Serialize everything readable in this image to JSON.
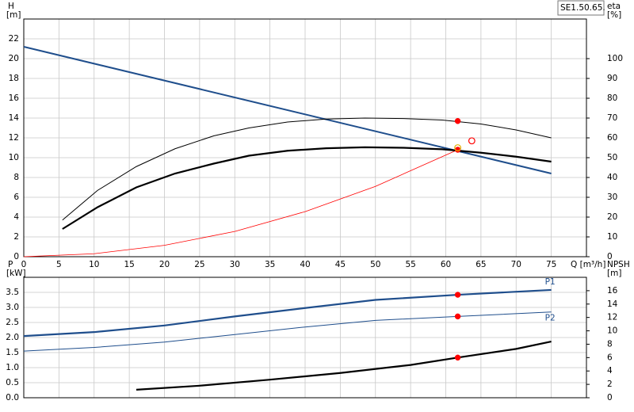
{
  "chart_data": [
    {
      "type": "line",
      "title": "SE1.50.65.",
      "xlabel": "Q [m³/h]",
      "ylabel": "H",
      "yunit": "[m]",
      "y2label": "eta",
      "y2unit": "[%]",
      "xlim": [
        0,
        80
      ],
      "xticks": [
        0,
        5,
        10,
        15,
        20,
        25,
        30,
        35,
        40,
        45,
        50,
        55,
        60,
        65,
        70,
        75
      ],
      "ylim": [
        0,
        24
      ],
      "yticks": [
        0,
        2,
        4,
        6,
        8,
        10,
        12,
        14,
        16,
        18,
        20,
        22
      ],
      "y2lim": [
        0,
        120
      ],
      "y2ticks": [
        0,
        10,
        20,
        30,
        40,
        50,
        60,
        70,
        80,
        90,
        100
      ],
      "grid": true,
      "series": [
        {
          "color": "#1f4e8c",
          "line_width": 2,
          "axis": "y",
          "x": [
            0,
            75
          ],
          "values": [
            21.2,
            8.4
          ]
        },
        {
          "color": "#ff0000",
          "line_width": 0.8,
          "axis": "y",
          "x": [
            0,
            10,
            20,
            30,
            40,
            50,
            61.7
          ],
          "values": [
            0,
            0.3,
            1.15,
            2.55,
            4.55,
            7.1,
            10.8
          ]
        },
        {
          "color": "#000000",
          "line_width": 1,
          "axis": "y2",
          "x": [
            5.5,
            10.5,
            16,
            21.5,
            27,
            32,
            37.5,
            43,
            48.5,
            54,
            59.5,
            65,
            70,
            75
          ],
          "values": [
            18.5,
            33.5,
            45.5,
            54.5,
            61,
            65,
            68,
            69.5,
            70,
            69.75,
            69,
            67,
            64,
            60
          ]
        },
        {
          "color": "#000000",
          "line_width": 2.2,
          "axis": "y",
          "x": [
            5.5,
            10.5,
            16,
            21.5,
            27,
            32,
            37.5,
            43,
            48.5,
            54,
            59.5,
            65,
            70,
            75
          ],
          "values": [
            2.8,
            5.0,
            7.0,
            8.4,
            9.4,
            10.2,
            10.7,
            10.95,
            11.05,
            11.0,
            10.85,
            10.5,
            10.1,
            9.6
          ]
        }
      ],
      "markers": [
        {
          "x": 61.7,
          "y": 10.8,
          "axis": "y",
          "color": "#ff0000",
          "style": "filled"
        },
        {
          "x": 61.7,
          "y": 11.0,
          "axis": "y",
          "color": "#e0b000",
          "style": "hollow"
        },
        {
          "x": 61.7,
          "y": 68.5,
          "axis": "y2",
          "color": "#ff0000",
          "style": "filled"
        },
        {
          "x": 63.7,
          "y": 11.7,
          "axis": "y",
          "color": "#ff0000",
          "style": "hollow"
        }
      ]
    },
    {
      "type": "line",
      "ylabel": "P",
      "yunit": "[kW]",
      "y2label": "NPSH",
      "y2unit": "[m]",
      "xlim": [
        0,
        80
      ],
      "ylim": [
        0,
        4
      ],
      "yticks": [
        {
          "value": 0,
          "label": "0.0"
        },
        0.5,
        {
          "value": 1,
          "label": "1.0"
        },
        1.5,
        {
          "value": 2,
          "label": "2.0"
        },
        2.5,
        {
          "value": 3,
          "label": "3.0"
        },
        3.5
      ],
      "y2lim": [
        0,
        18
      ],
      "y2ticks": [
        0,
        2,
        4,
        6,
        8,
        10,
        12,
        14,
        16
      ],
      "grid": true,
      "series": [
        {
          "name": "P1",
          "color": "#1f4e8c",
          "line_width": 2.2,
          "axis": "y",
          "x": [
            0,
            10,
            20,
            30,
            40,
            50,
            61.7,
            75
          ],
          "values": [
            2.05,
            2.18,
            2.4,
            2.7,
            2.98,
            3.25,
            3.42,
            3.58
          ]
        },
        {
          "name": "P2",
          "color": "#1f4e8c",
          "line_width": 1,
          "axis": "y",
          "x": [
            0,
            10,
            20,
            30,
            40,
            50,
            61.7,
            75
          ],
          "values": [
            1.55,
            1.67,
            1.85,
            2.1,
            2.35,
            2.57,
            2.7,
            2.85
          ]
        },
        {
          "color": "#000000",
          "line_width": 2.2,
          "axis": "y2",
          "x": [
            16,
            25,
            35,
            45,
            55,
            61.7,
            70,
            75
          ],
          "values": [
            1.2,
            1.8,
            2.7,
            3.7,
            4.9,
            6.0,
            7.3,
            8.4
          ]
        }
      ],
      "markers": [
        {
          "x": 61.7,
          "y": 3.42,
          "axis": "y",
          "color": "#ff0000",
          "style": "filled"
        },
        {
          "x": 61.7,
          "y": 2.7,
          "axis": "y",
          "color": "#ff0000",
          "style": "filled"
        },
        {
          "x": 61.7,
          "y": 6.0,
          "axis": "y2",
          "color": "#ff0000",
          "style": "filled"
        }
      ]
    }
  ]
}
